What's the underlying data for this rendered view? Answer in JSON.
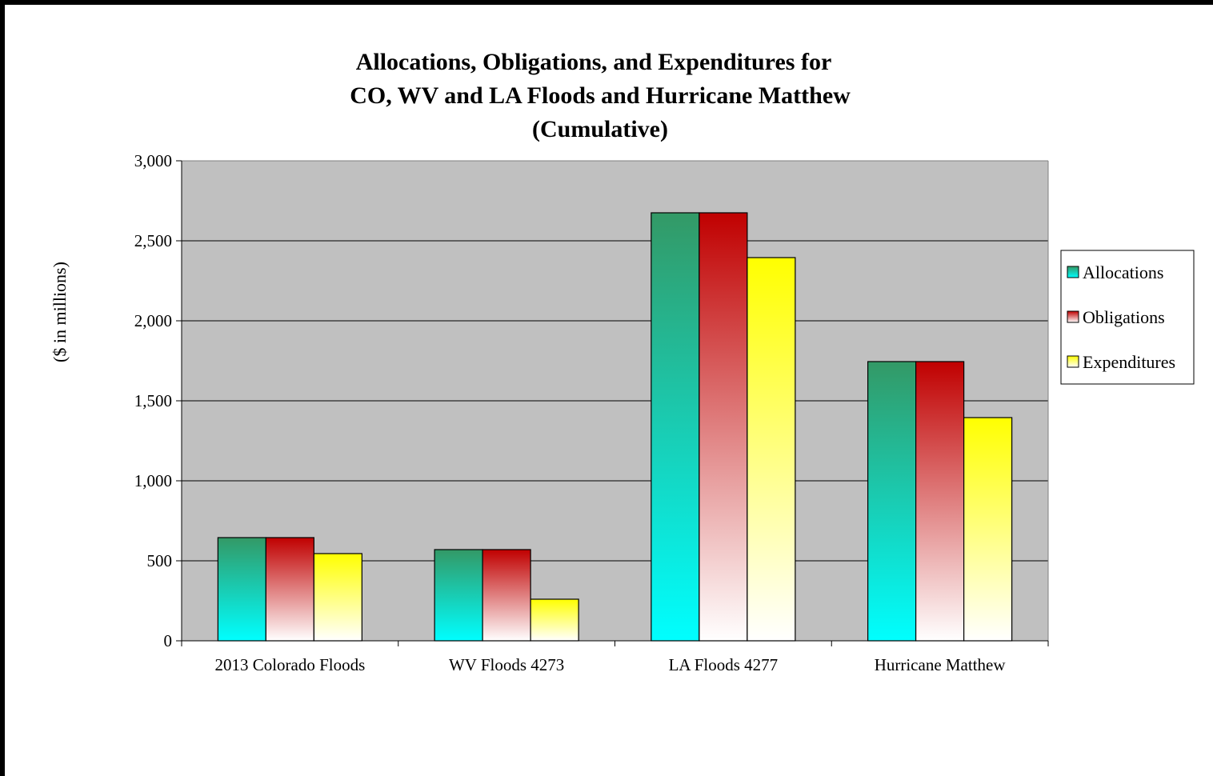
{
  "chart_data": {
    "type": "bar",
    "title_lines": [
      "Allocations, Obligations, and Expenditures for",
      "CO, WV and LA Floods and Hurricane Matthew",
      "(Cumulative)"
    ],
    "ylabel": "($ in millions)",
    "xlabel": "",
    "ylim": [
      0,
      3000
    ],
    "yticks": [
      0,
      500,
      1000,
      1500,
      2000,
      2500,
      3000
    ],
    "ytick_labels": [
      "0",
      "500",
      "1,000",
      "1,500",
      "2,000",
      "2,500",
      "3,000"
    ],
    "categories": [
      "2013 Colorado Floods",
      "WV Floods 4273",
      "LA Floods 4277",
      "Hurricane Matthew"
    ],
    "series": [
      {
        "name": "Allocations",
        "values": [
          645,
          570,
          2675,
          1745
        ]
      },
      {
        "name": "Obligations",
        "values": [
          645,
          570,
          2675,
          1745
        ]
      },
      {
        "name": "Expenditures",
        "values": [
          545,
          260,
          2395,
          1395
        ]
      }
    ],
    "grid": true,
    "legend_position": "right",
    "colors": {
      "plot_background": "#c0c0c0",
      "allocations_top": "#339966",
      "allocations_bottom": "#00ffff",
      "obligations_top": "#c00000",
      "obligations_bottom": "#ffffff",
      "expenditures_top": "#ffff00",
      "expenditures_bottom": "#ffffff"
    }
  }
}
